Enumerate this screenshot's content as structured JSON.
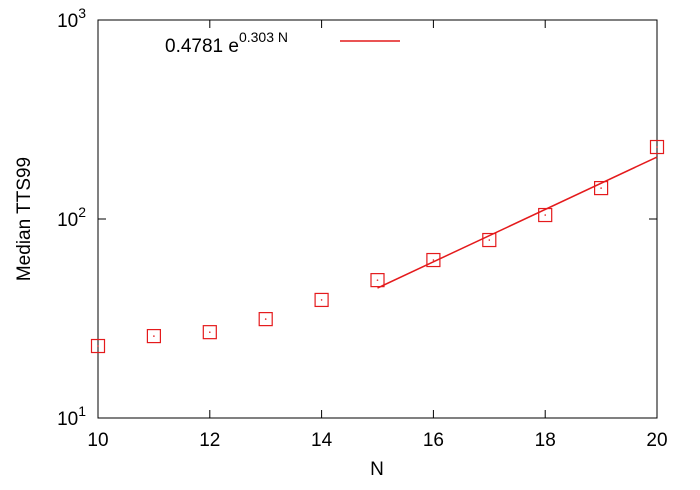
{
  "chart_data": {
    "type": "scatter",
    "xlabel": "N",
    "ylabel": "Median TTS99",
    "xlim": [
      10,
      20
    ],
    "xticks": [
      10,
      12,
      14,
      16,
      18,
      20
    ],
    "ylim": [
      10,
      1000
    ],
    "log_y": true,
    "yticks": [
      {
        "value": 10,
        "label": "10",
        "exponent": "1"
      },
      {
        "value": 100,
        "label": "10",
        "exponent": "2"
      },
      {
        "value": 1000,
        "label": "10",
        "exponent": "3"
      }
    ],
    "series": [
      {
        "color": "#e41a1c",
        "marker": "square",
        "x": [
          10,
          11,
          12,
          13,
          14,
          15,
          16,
          17,
          18,
          19,
          20
        ],
        "values": [
          23.0,
          25.8,
          27.0,
          31.4,
          39.2,
          49.3,
          62.2,
          78.4,
          104.7,
          143,
          230
        ]
      },
      {
        "name": "0.4781 e",
        "name_sup": "0.303 N",
        "color": "#e41a1c",
        "marker": "line",
        "x": [
          15,
          20
        ],
        "values": [
          45.0,
          204.8
        ]
      }
    ]
  }
}
